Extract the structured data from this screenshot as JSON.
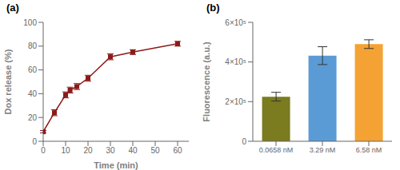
{
  "chart_data": [
    {
      "type": "line",
      "title": "(a)",
      "x": [
        0,
        5,
        10,
        12,
        15,
        20,
        30,
        40,
        60
      ],
      "values": [
        8,
        24,
        39,
        43,
        46,
        53,
        71,
        75,
        82
      ],
      "errors": [
        1.0,
        2.5,
        2.5,
        2.5,
        2.5,
        2.5,
        2.5,
        2.0,
        2.0
      ],
      "color": "#8B1A1A",
      "marker": "square",
      "xlabel": "Time (min)",
      "ylabel": "Dox release (%)",
      "xlim": [
        0,
        65
      ],
      "ylim": [
        0,
        100
      ],
      "xticks": [
        0,
        10,
        20,
        30,
        40,
        50,
        60
      ],
      "yticks": [
        0,
        20,
        40,
        60,
        80,
        100
      ],
      "grid": false
    },
    {
      "type": "bar",
      "title": "(b)",
      "categories": [
        "0.0658 nM",
        "3.29 nM",
        "6.58 nM"
      ],
      "values": [
        225000,
        432000,
        490000
      ],
      "errors": [
        22000,
        45000,
        22000
      ],
      "colors": [
        "#7B7B20",
        "#5B9BD5",
        "#F4A233"
      ],
      "ylabel": "Fluorescence (a.u.)",
      "ylim": [
        0,
        600000
      ],
      "yticks": [
        0,
        {
          "value": 200000,
          "label": "2×10⁵"
        },
        {
          "value": 400000,
          "label": "4×10⁵"
        },
        {
          "value": 600000,
          "label": "6×10⁵"
        }
      ],
      "grid": false
    }
  ]
}
